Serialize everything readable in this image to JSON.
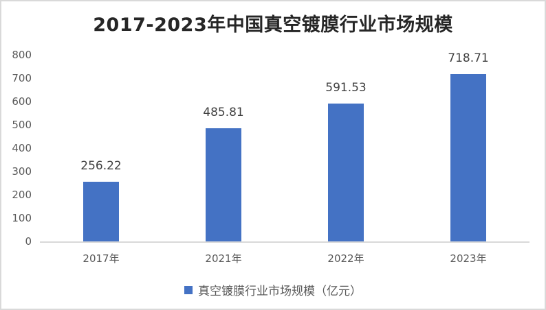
{
  "chart_data": {
    "type": "bar",
    "title": "2017-2023年中国真空镀膜行业市场规模",
    "categories": [
      "2017年",
      "2021年",
      "2022年",
      "2023年"
    ],
    "series": [
      {
        "name": "真空镀膜行业市场规模（亿元）",
        "values": [
          256.22,
          485.81,
          591.53,
          718.71
        ],
        "color": "#4472c4"
      }
    ],
    "data_labels": [
      "256.22",
      "485.81",
      "591.53",
      "718.71"
    ],
    "xlabel": "",
    "ylabel": "",
    "ylim": [
      0,
      800
    ],
    "yticks": [
      "0",
      "100",
      "200",
      "300",
      "400",
      "500",
      "600",
      "700",
      "800"
    ],
    "grid": false,
    "legend_position": "bottom"
  }
}
